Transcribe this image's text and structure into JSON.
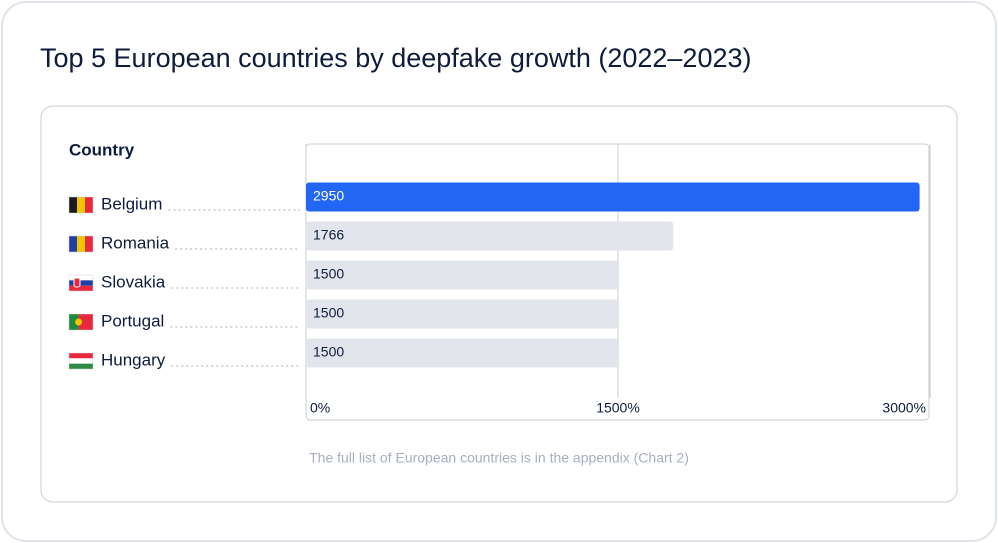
{
  "chart_data": {
    "type": "bar",
    "orientation": "horizontal",
    "title": "Top 5 European countries by deepfake growth (2022–2023)",
    "category_header": "Country",
    "categories": [
      "Belgium",
      "Romania",
      "Slovakia",
      "Portugal",
      "Hungary"
    ],
    "values": [
      2950,
      1766,
      1500,
      1500,
      1500
    ],
    "colors": [
      "#2166f5",
      "#e2e6ec",
      "#e2e6ec",
      "#e2e6ec",
      "#e2e6ec"
    ],
    "xlim": [
      0,
      3000
    ],
    "xticks": [
      {
        "value": 0,
        "label": "0%"
      },
      {
        "value": 1500,
        "label": "1500%"
      },
      {
        "value": 3000,
        "label": "3000%"
      }
    ],
    "grid": true,
    "footnote": "The full list of European countries is in the appendix (Chart 2)"
  }
}
